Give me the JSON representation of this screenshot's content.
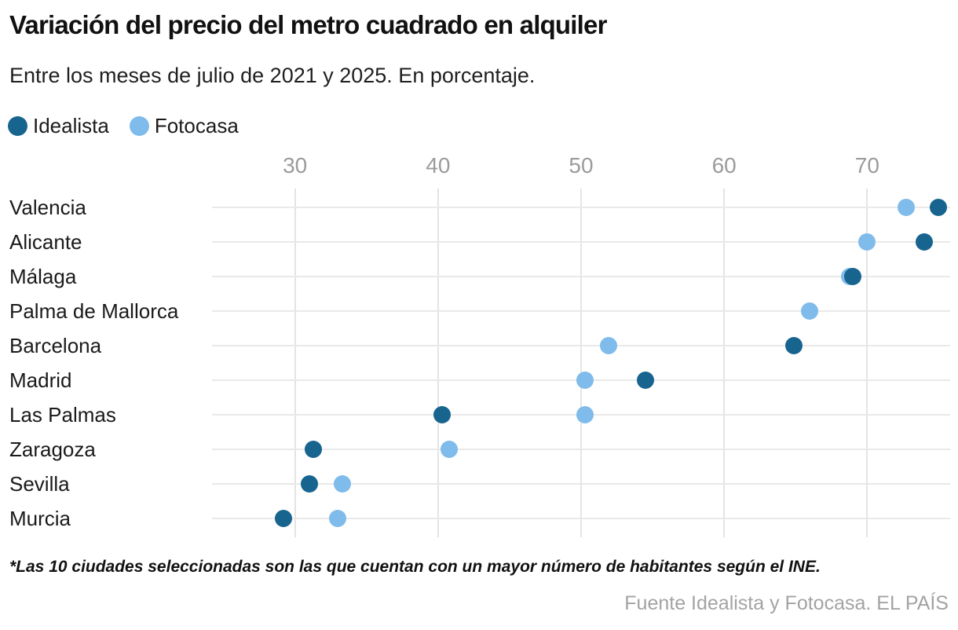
{
  "header": {
    "title": "Variación del precio del metro cuadrado en alquiler",
    "subtitle": "Entre los meses de julio de 2021 y 2025. En porcentaje."
  },
  "legend": [
    {
      "label": "Idealista",
      "color": "#17648f"
    },
    {
      "label": "Fotocasa",
      "color": "#7fbbeb"
    }
  ],
  "chart_data": {
    "type": "scatter",
    "subtype": "horizontal-dot-plot",
    "title": "Variación del precio del metro cuadrado en alquiler",
    "subtitle": "Entre los meses de julio de 2021 y 2025. En porcentaje.",
    "xlabel": "",
    "ylabel": "",
    "x_ticks": [
      30,
      40,
      50,
      60,
      70
    ],
    "xlim": [
      24.2,
      75.8
    ],
    "grid": true,
    "legend_position": "top-left",
    "series": [
      {
        "name": "Idealista",
        "color": "#17648f"
      },
      {
        "name": "Fotocasa",
        "color": "#7fbbeb"
      }
    ],
    "categories": [
      "Valencia",
      "Alicante",
      "Málaga",
      "Palma de Mallorca",
      "Barcelona",
      "Madrid",
      "Las Palmas",
      "Zaragoza",
      "Sevilla",
      "Murcia"
    ],
    "points": [
      {
        "city": "Valencia",
        "idealista": 75.0,
        "fotocasa": 72.7
      },
      {
        "city": "Alicante",
        "idealista": 74.0,
        "fotocasa": 70.0
      },
      {
        "city": "Málaga",
        "idealista": 69.0,
        "fotocasa": 68.8
      },
      {
        "city": "Palma de Mallorca",
        "idealista": null,
        "fotocasa": 66.0
      },
      {
        "city": "Barcelona",
        "idealista": 64.9,
        "fotocasa": 51.9
      },
      {
        "city": "Madrid",
        "idealista": 54.5,
        "fotocasa": 50.3
      },
      {
        "city": "Las Palmas",
        "idealista": 40.3,
        "fotocasa": 50.3
      },
      {
        "city": "Zaragoza",
        "idealista": 31.3,
        "fotocasa": 40.8
      },
      {
        "city": "Sevilla",
        "idealista": 31.0,
        "fotocasa": 33.3
      },
      {
        "city": "Murcia",
        "idealista": 29.2,
        "fotocasa": 33.0
      }
    ]
  },
  "footer": {
    "note": "*Las 10 ciudades seleccionadas son las que cuentan con un mayor número de habitantes según el INE.",
    "source": "Fuente Idealista y Fotocasa. EL PAÍS"
  }
}
